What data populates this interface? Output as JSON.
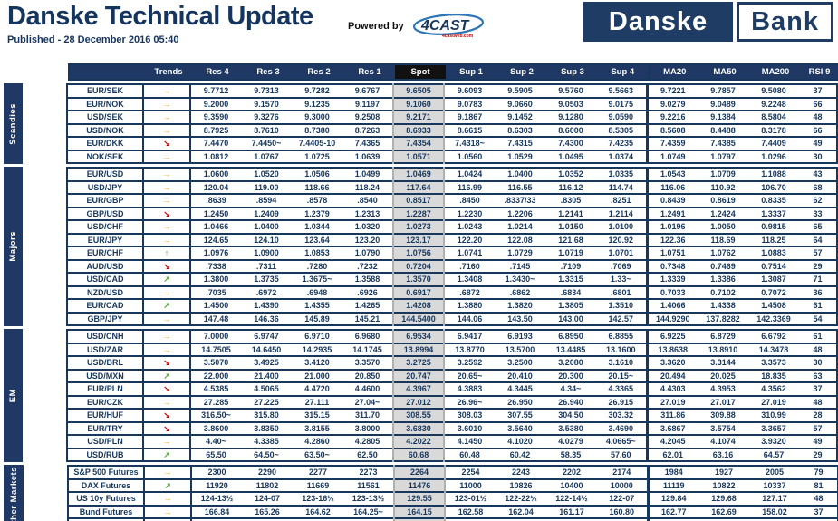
{
  "header": {
    "title": "Danske Technical Update",
    "published": "Published - 28 December 2016 05:40",
    "powered_by": "Powered by",
    "vendor": "4CAST",
    "vendor_sub": "4castweb.com",
    "logo_left": "Danske",
    "logo_right": "Bank"
  },
  "colors": {
    "navy": "#17375d",
    "header_bg": "#1f3864",
    "spot_header_bg": "#111111",
    "spot_cell_bg": "#d9d9d9"
  },
  "trend_icons": {
    "sideways": {
      "glyph": "→",
      "color": "#f0a500"
    },
    "down": {
      "glyph": "↘",
      "color": "#c00000"
    },
    "up": {
      "glyph": "↑",
      "color": "#57a13d"
    },
    "up_right": {
      "glyph": "↗",
      "color": "#57a13d"
    }
  },
  "table": {
    "columns": [
      "Trends",
      "Res 4",
      "Res 3",
      "Res 2",
      "Res 1",
      "Spot",
      "Sup 1",
      "Sup 2",
      "Sup 3",
      "Sup 4",
      "MA20",
      "MA50",
      "MA200",
      "RSI 9"
    ],
    "value_keys": [
      "res4",
      "res3",
      "res2",
      "res1",
      "spot",
      "sup1",
      "sup2",
      "sup3",
      "sup4",
      "ma20",
      "ma50",
      "ma200",
      "rsi9"
    ],
    "sections": [
      {
        "label": "Scandies",
        "rows": [
          {
            "name": "EUR/SEK",
            "trend": "sideways",
            "values": [
              "9.7712",
              "9.7313",
              "9.7282",
              "9.6767",
              "9.6505",
              "9.6093",
              "9.5905",
              "9.5760",
              "9.5663",
              "9.7221",
              "9.7857",
              "9.5080",
              "37"
            ]
          },
          {
            "name": "EUR/NOK",
            "trend": "sideways",
            "values": [
              "9.2000",
              "9.1570",
              "9.1235",
              "9.1197",
              "9.1060",
              "9.0783",
              "9.0660",
              "9.0503",
              "9.0175",
              "9.0279",
              "9.0489",
              "9.2248",
              "66"
            ]
          },
          {
            "name": "USD/SEK",
            "trend": "sideways",
            "values": [
              "9.3590",
              "9.3276",
              "9.3000",
              "9.2508",
              "9.2171",
              "9.1867",
              "9.1452",
              "9.1280",
              "9.0590",
              "9.2216",
              "9.1384",
              "8.5804",
              "48"
            ]
          },
          {
            "name": "USD/NOK",
            "trend": "sideways",
            "values": [
              "8.7925",
              "8.7610",
              "8.7380",
              "8.7263",
              "8.6933",
              "8.6615",
              "8.6303",
              "8.6000",
              "8.5305",
              "8.5608",
              "8.4488",
              "8.3178",
              "66"
            ]
          },
          {
            "name": "EUR/DKK",
            "trend": "down",
            "values": [
              "7.4470",
              "7.4450~",
              "7.4405-10",
              "7.4365",
              "7.4354",
              "7.4318~",
              "7.4315",
              "7.4300",
              "7.4235",
              "7.4359",
              "7.4385",
              "7.4409",
              "49"
            ]
          },
          {
            "name": "NOK/SEK",
            "trend": "sideways",
            "values": [
              "1.0812",
              "1.0767",
              "1.0725",
              "1.0639",
              "1.0571",
              "1.0560",
              "1.0529",
              "1.0495",
              "1.0374",
              "1.0749",
              "1.0797",
              "1.0296",
              "30"
            ]
          }
        ]
      },
      {
        "label": "Majors",
        "rows": [
          {
            "name": "EUR/USD",
            "trend": "sideways",
            "values": [
              "1.0600",
              "1.0520",
              "1.0506",
              "1.0499",
              "1.0469",
              "1.0424",
              "1.0400",
              "1.0352",
              "1.0335",
              "1.0543",
              "1.0709",
              "1.1088",
              "43"
            ]
          },
          {
            "name": "USD/JPY",
            "trend": "sideways",
            "values": [
              "120.04",
              "119.00",
              "118.66",
              "118.24",
              "117.64",
              "116.99",
              "116.55",
              "116.12",
              "114.74",
              "116.06",
              "110.92",
              "106.70",
              "68"
            ]
          },
          {
            "name": "EUR/GBP",
            "trend": "sideways",
            "values": [
              ".8639",
              ".8594",
              ".8578",
              ".8540",
              "0.8517",
              ".8450",
              ".8337/33",
              ".8305",
              ".8251",
              "0.8439",
              "0.8619",
              "0.8335",
              "62"
            ]
          },
          {
            "name": "GBP/USD",
            "trend": "down",
            "values": [
              "1.2450",
              "1.2409",
              "1.2379",
              "1.2313",
              "1.2287",
              "1.2230",
              "1.2206",
              "1.2141",
              "1.2114",
              "1.2491",
              "1.2424",
              "1.3337",
              "33"
            ]
          },
          {
            "name": "USD/CHF",
            "trend": "sideways",
            "values": [
              "1.0466",
              "1.0400",
              "1.0344",
              "1.0320",
              "1.0273",
              "1.0243",
              "1.0214",
              "1.0150",
              "1.0100",
              "1.0196",
              "1.0050",
              "0.9815",
              "65"
            ]
          },
          {
            "name": "EUR/JPY",
            "trend": "sideways",
            "values": [
              "124.65",
              "124.10",
              "123.64",
              "123.20",
              "123.17",
              "122.20",
              "122.08",
              "121.68",
              "120.92",
              "122.36",
              "118.69",
              "118.25",
              "64"
            ]
          },
          {
            "name": "EUR/CHF",
            "trend": "up",
            "values": [
              "1.0976",
              "1.0900",
              "1.0853",
              "1.0790",
              "1.0756",
              "1.0741",
              "1.0729",
              "1.0719",
              "1.0701",
              "1.0751",
              "1.0762",
              "1.0883",
              "57"
            ]
          },
          {
            "name": "AUD/USD",
            "trend": "down",
            "values": [
              ".7338",
              ".7311",
              ".7280",
              ".7232",
              "0.7204",
              ".7160",
              ".7145",
              ".7109",
              ".7069",
              "0.7348",
              "0.7469",
              "0.7514",
              "29"
            ]
          },
          {
            "name": "USD/CAD",
            "trend": "up_right",
            "values": [
              "1.3800",
              "1.3735",
              "1.3675~",
              "1.3588",
              "1.3570",
              "1.3408",
              "1.3430~",
              "1.3315",
              "1.33~",
              "1.3339",
              "1.3386",
              "1.3087",
              "71"
            ]
          },
          {
            "name": "NZD/USD",
            "trend": "sideways",
            "values": [
              ".7035",
              ".6972",
              ".6948",
              ".6926",
              "0.6917",
              ".6872",
              ".6862",
              ".6834",
              ".6801",
              "0.7033",
              "0.7102",
              "0.7072",
              "36"
            ]
          },
          {
            "name": "EUR/CAD",
            "trend": "up_right",
            "values": [
              "1.4500",
              "1.4390",
              "1.4355",
              "1.4265",
              "1.4208",
              "1.3880",
              "1.3820",
              "1.3805",
              "1.3510",
              "1.4066",
              "1.4338",
              "1.4508",
              "61"
            ]
          },
          {
            "name": "GBP/JPY",
            "trend": "sideways",
            "values": [
              "147.48",
              "146.36",
              "145.89",
              "145.21",
              "144.5400",
              "144.06",
              "143.50",
              "143.00",
              "142.57",
              "144.9290",
              "137.8282",
              "142.3369",
              "54"
            ]
          }
        ]
      },
      {
        "label": "EM",
        "rows": [
          {
            "name": "USD/CNH",
            "trend": "sideways",
            "values": [
              "7.0000",
              "6.9747",
              "6.9710",
              "6.9680",
              "6.9534",
              "6.9417",
              "6.9193",
              "6.8950",
              "6.8855",
              "6.9225",
              "6.8729",
              "6.6792",
              "61"
            ]
          },
          {
            "name": "USD/ZAR",
            "trend": "sideways",
            "values": [
              "14.7505",
              "14.6450",
              "14.2935",
              "14.1745",
              "13.8994",
              "13.8770",
              "13.5700",
              "13.4485",
              "13.1600",
              "13.8638",
              "13.8910",
              "14.3478",
              "48"
            ]
          },
          {
            "name": "USD/BRL",
            "trend": "down",
            "values": [
              "3.5070",
              "3.4925",
              "3.4120",
              "3.3570",
              "3.2725",
              "3.2592",
              "3.2500",
              "3.2080",
              "3.1610",
              "3.3620",
              "3.3144",
              "3.3573",
              "30"
            ]
          },
          {
            "name": "USD/MXN",
            "trend": "up_right",
            "values": [
              "22.000",
              "21.400",
              "21.000",
              "20.850",
              "20.747",
              "20.65~",
              "20.410",
              "20.300",
              "20.15~",
              "20.494",
              "20.025",
              "18.835",
              "63"
            ]
          },
          {
            "name": "EUR/PLN",
            "trend": "down",
            "values": [
              "4.5385",
              "4.5065",
              "4.4720",
              "4.4600",
              "4.3967",
              "4.3883",
              "4.3445",
              "4.34~",
              "4.3365",
              "4.4303",
              "4.3953",
              "4.3562",
              "37"
            ]
          },
          {
            "name": "EUR/CZK",
            "trend": "sideways",
            "values": [
              "27.285",
              "27.225",
              "27.111",
              "27.04~",
              "27.012",
              "26.96~",
              "26.950",
              "26.940",
              "26.915",
              "27.019",
              "27.017",
              "27.019",
              "48"
            ]
          },
          {
            "name": "EUR/HUF",
            "trend": "down",
            "values": [
              "316.50~",
              "315.80",
              "315.15",
              "311.70",
              "308.55",
              "308.03",
              "307.55",
              "304.50",
              "303.32",
              "311.86",
              "309.88",
              "310.99",
              "28"
            ]
          },
          {
            "name": "EUR/TRY",
            "trend": "down",
            "values": [
              "3.8600",
              "3.8350",
              "3.8155",
              "3.8000",
              "3.6830",
              "3.6010",
              "3.5640",
              "3.5380",
              "3.4690",
              "3.6867",
              "3.5754",
              "3.3657",
              "57"
            ]
          },
          {
            "name": "USD/PLN",
            "trend": "sideways",
            "values": [
              "4.40~",
              "4.3385",
              "4.2860",
              "4.2805",
              "4.2022",
              "4.1450",
              "4.1020",
              "4.0279",
              "4.0665~",
              "4.2045",
              "4.1074",
              "3.9320",
              "49"
            ]
          },
          {
            "name": "USD/RUB",
            "trend": "up_right",
            "values": [
              "65.50",
              "64.50~",
              "63.50~",
              "62.50",
              "60.68",
              "60.48",
              "60.42",
              "58.35",
              "57.60",
              "62.01",
              "63.16",
              "64.57",
              "29"
            ]
          }
        ]
      },
      {
        "label": "Other Markets",
        "rows": [
          {
            "name": "S&P 500 Futures",
            "trend": "sideways",
            "values": [
              "2300",
              "2290",
              "2277",
              "2273",
              "2264",
              "2254",
              "2243",
              "2202",
              "2174",
              "1984",
              "1927",
              "2005",
              "79"
            ]
          },
          {
            "name": "DAX Futures",
            "trend": "up_right",
            "values": [
              "11920",
              "11802",
              "11669",
              "11561",
              "11476",
              "11000",
              "10826",
              "10400",
              "10000",
              "11119",
              "10822",
              "10337",
              "81"
            ]
          },
          {
            "name": "US 10y Futures",
            "trend": "sideways",
            "values": [
              "124-13½",
              "124-07",
              "123-16½",
              "123-13½",
              "129.55",
              "123-01½",
              "122-22½",
              "122-14½",
              "122-07",
              "129.84",
              "129.68",
              "127.17",
              "48"
            ]
          },
          {
            "name": "Bund Futures",
            "trend": "sideways",
            "values": [
              "166.84",
              "165.26",
              "164.62",
              "164.25~",
              "164.15",
              "162.58",
              "162.04",
              "161.17",
              "160.80",
              "162.77",
              "162.69",
              "158.02",
              "37"
            ]
          },
          {
            "name": "WTI Oil Futures",
            "trend": "sideways",
            "values": [
              "56.00",
              "55.44",
              "54.40",
              "53.80",
              "53.79",
              "52.08",
              "51.10",
              "50.76",
              "50.02",
              "51.86",
              "48.94",
              "46.14",
              "70"
            ]
          }
        ]
      }
    ]
  }
}
